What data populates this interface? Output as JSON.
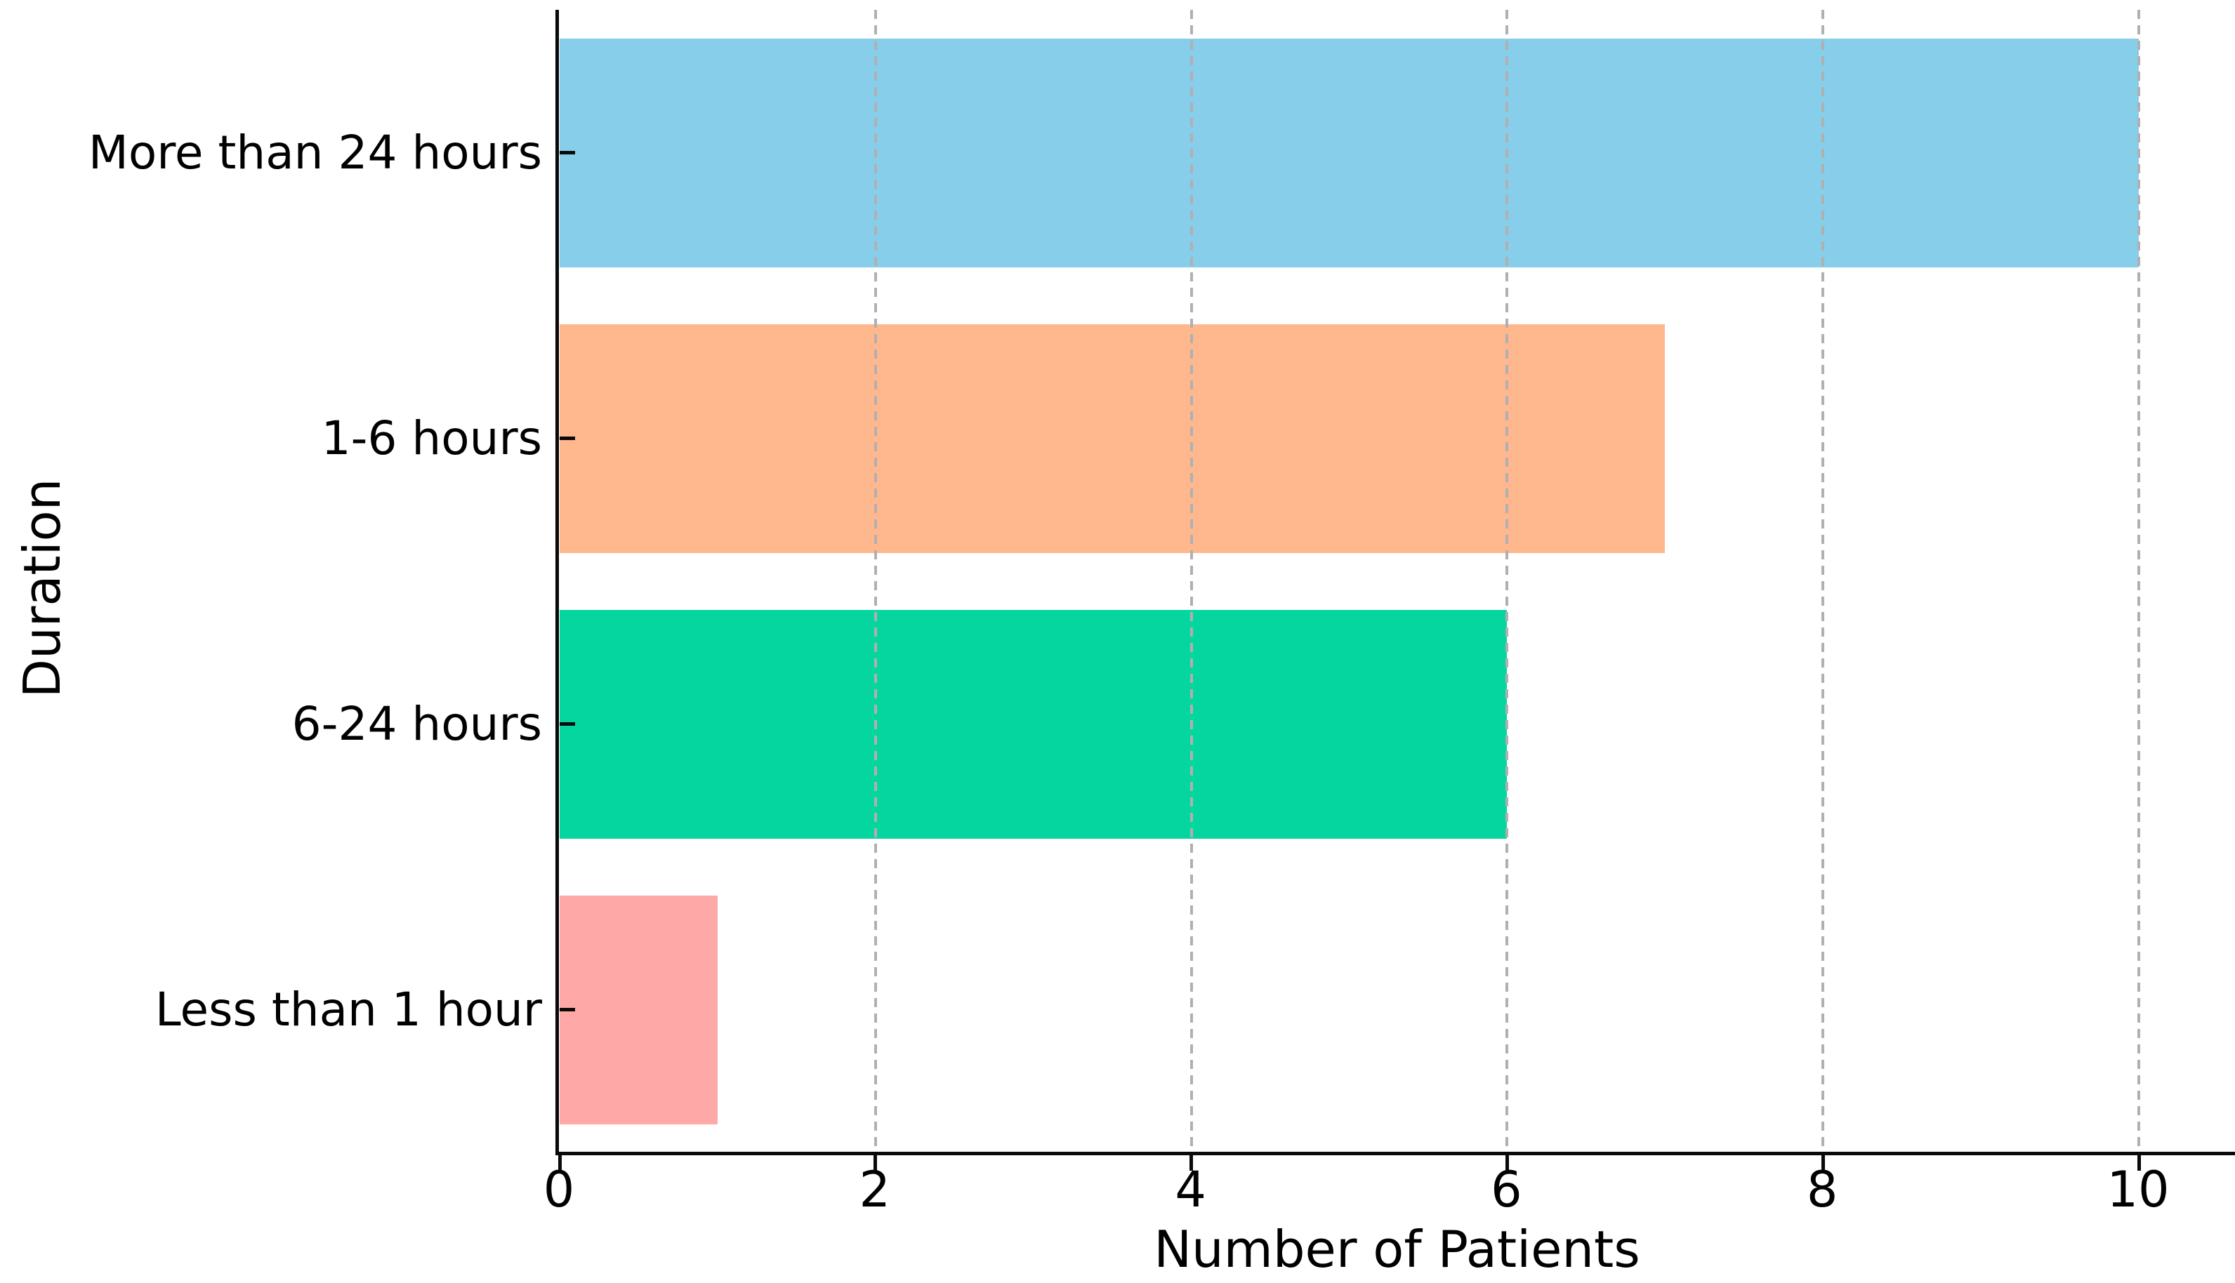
{
  "figure": {
    "background_color": "#ffffff",
    "text_color": "#000000",
    "spine_color": "#0a0a0a",
    "grid_color": "#b0b0b0"
  },
  "chart_data": {
    "type": "bar",
    "orientation": "horizontal",
    "title": "",
    "xlabel": "Number of Patients",
    "ylabel": "Duration",
    "categories": [
      "More than 24 hours",
      "1-6 hours",
      "6-24 hours",
      "Less than 1 hour"
    ],
    "values": [
      10,
      7,
      6,
      1
    ],
    "bar_colors": [
      "#87CEEB",
      "#FFB78E",
      "#05D6A0",
      "#FFA8A8"
    ],
    "x_ticks": [
      0,
      2,
      4,
      6,
      8,
      10
    ],
    "x_tick_labels": [
      "0",
      "2",
      "4",
      "6",
      "8",
      "10"
    ],
    "xlim": [
      0,
      10.62
    ],
    "grid": "vertical-dashed",
    "grid_over_bars": true,
    "legend": "none",
    "bar_height_fraction": 0.8
  }
}
